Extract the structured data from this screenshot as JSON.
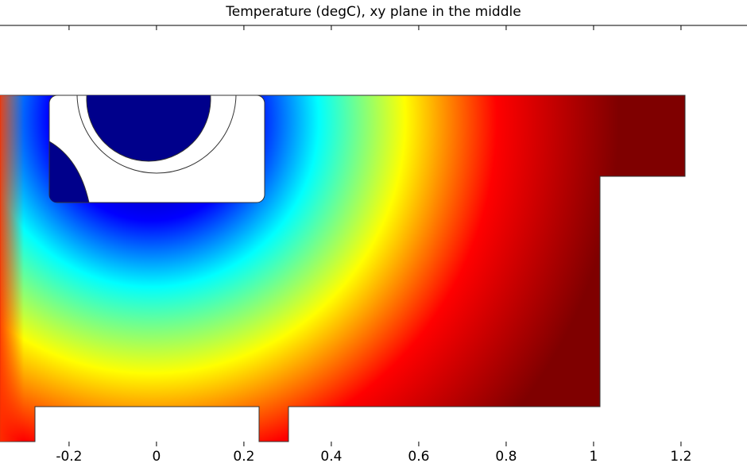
{
  "chart_data": {
    "type": "field",
    "title": "Temperature (degC),  xy plane in the middle",
    "xlim": [
      -0.358,
      1.351
    ],
    "xticks": [
      -0.2,
      0,
      0.2,
      0.4,
      0.6,
      0.8,
      1,
      1.2
    ],
    "colormap": [
      "#00007f",
      "#0000ff",
      "#00ffff",
      "#ffff00",
      "#ff0000",
      "#7f0000"
    ]
  }
}
